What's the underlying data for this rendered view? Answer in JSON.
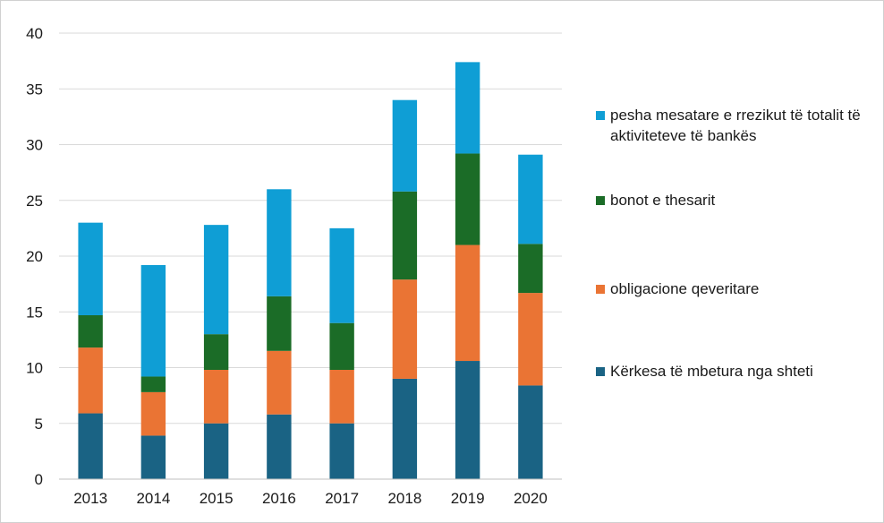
{
  "chart_data": {
    "type": "bar",
    "stacked": true,
    "categories": [
      "2013",
      "2014",
      "2015",
      "2016",
      "2017",
      "2018",
      "2019",
      "2020"
    ],
    "series": [
      {
        "name": "Kërkesa të mbetura nga shteti",
        "color": "#1a6384",
        "values": [
          5.9,
          3.9,
          5.0,
          5.8,
          5.0,
          9.0,
          10.6,
          8.4
        ]
      },
      {
        "name": "obligacione qeveritare",
        "color": "#ea7434",
        "values": [
          5.9,
          3.9,
          4.8,
          5.7,
          4.8,
          8.9,
          10.4,
          8.3
        ]
      },
      {
        "name": "bonot e thesarit",
        "color": "#1b6c27",
        "values": [
          2.9,
          1.4,
          3.2,
          4.9,
          4.2,
          7.9,
          8.2,
          4.4
        ]
      },
      {
        "name": "pesha mesatare e rrezikut të totalit të aktiviteteve të bankës",
        "color": "#0f9ed5",
        "values": [
          8.3,
          10.0,
          9.8,
          9.6,
          8.5,
          8.2,
          8.2,
          8.0
        ]
      }
    ],
    "yticks": [
      "0",
      "5",
      "10",
      "15",
      "20",
      "25",
      "30",
      "35",
      "40"
    ],
    "ylim": [
      0,
      40
    ],
    "grid": true,
    "legend_position": "right",
    "legend_order": [
      3,
      2,
      1,
      0
    ],
    "title": "",
    "xlabel": "",
    "ylabel": ""
  }
}
